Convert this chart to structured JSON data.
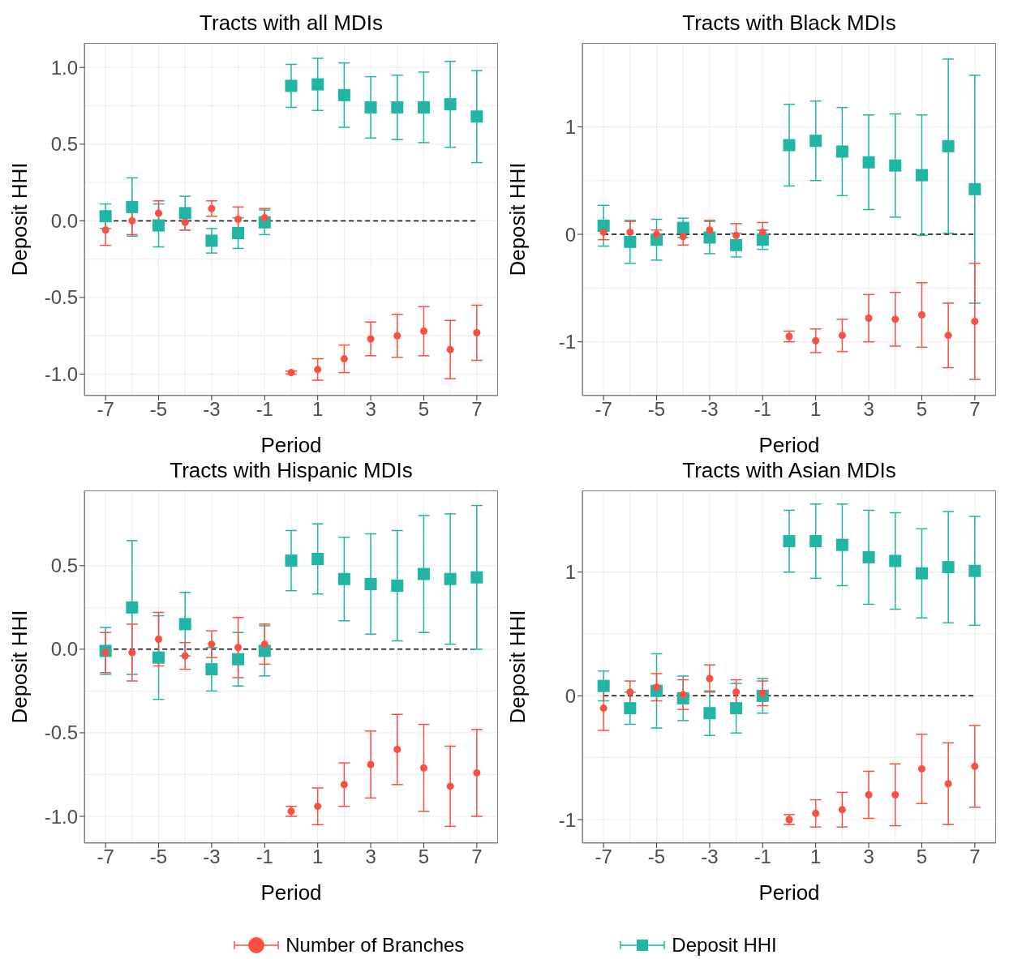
{
  "chart_data": [
    {
      "type": "scatter",
      "title": "Tracts with all MDIs",
      "xlabel": "Period",
      "ylabel": "Deposit HHI",
      "x": [
        -7,
        -6,
        -5,
        -4,
        -3,
        -2,
        -1,
        0,
        1,
        2,
        3,
        4,
        5,
        6,
        7
      ],
      "xlim": [
        -7.8,
        7.8
      ],
      "xticks": [
        -7,
        -5,
        -3,
        -1,
        1,
        3,
        5,
        7
      ],
      "ylim": [
        -1.14,
        1.16
      ],
      "yticks": [
        {
          "value": -1,
          "label": "-1.0"
        },
        {
          "value": -0.5,
          "label": "-0.5"
        },
        {
          "value": 0,
          "label": "0.0"
        },
        {
          "value": 0.5,
          "label": "0.5"
        },
        {
          "value": 1,
          "label": "1.0"
        }
      ],
      "grid": true,
      "legend": "bottom",
      "ref_lines": [
        {
          "axis": "y",
          "value": 0,
          "color": "#000000",
          "line_style": "dashed"
        }
      ],
      "series": [
        {
          "name": "Number of Branches",
          "color": "#fb4f43",
          "marker": "circle",
          "values": [
            -0.06,
            0,
            0.05,
            -0.01,
            0.08,
            0.01,
            0.02,
            -0.99,
            -0.97,
            -0.9,
            -0.77,
            -0.75,
            -0.72,
            -0.84,
            -0.73
          ],
          "errors": [
            0.1,
            0.09,
            0.08,
            0.05,
            0.05,
            0.08,
            0.06,
            0.01,
            0.07,
            0.09,
            0.11,
            0.14,
            0.16,
            0.19,
            0.18
          ]
        },
        {
          "name": "Deposit HHI",
          "color": "#20b5a5",
          "marker": "square",
          "values": [
            0.03,
            0.09,
            -0.03,
            0.05,
            -0.13,
            -0.08,
            -0.01,
            0.88,
            0.89,
            0.82,
            0.74,
            0.74,
            0.74,
            0.76,
            0.68
          ],
          "errors": [
            0.08,
            0.19,
            0.14,
            0.11,
            0.08,
            0.1,
            0.08,
            0.14,
            0.17,
            0.21,
            0.2,
            0.21,
            0.23,
            0.28,
            0.3
          ]
        }
      ]
    },
    {
      "type": "scatter",
      "title": "Tracts with Black MDIs",
      "xlabel": "Period",
      "ylabel": "Deposit HHI",
      "x": [
        -7,
        -6,
        -5,
        -4,
        -3,
        -2,
        -1,
        0,
        1,
        2,
        3,
        4,
        5,
        6,
        7
      ],
      "xlim": [
        -7.8,
        7.8
      ],
      "xticks": [
        -7,
        -5,
        -3,
        -1,
        1,
        3,
        5,
        7
      ],
      "ylim": [
        -1.5,
        1.78
      ],
      "yticks": [
        -1,
        0,
        1
      ],
      "grid": true,
      "ref_lines": [
        {
          "axis": "y",
          "value": 0,
          "color": "#000000",
          "line_style": "dashed"
        }
      ],
      "series": [
        {
          "color": "#fb4f43",
          "marker": "circle",
          "values": [
            0.02,
            0.02,
            0,
            -0.02,
            0.04,
            -0.01,
            0.02,
            -0.95,
            -0.99,
            -0.94,
            -0.78,
            -0.79,
            -0.75,
            -0.94,
            -0.81
          ],
          "errors": [
            0.07,
            0.1,
            0.04,
            0.08,
            0.09,
            0.11,
            0.09,
            0.05,
            0.11,
            0.15,
            0.22,
            0.25,
            0.3,
            0.3,
            0.54
          ]
        },
        {
          "color": "#20b5a5",
          "marker": "square",
          "values": [
            0.08,
            -0.07,
            -0.05,
            0.06,
            -0.03,
            -0.1,
            -0.05,
            0.83,
            0.87,
            0.77,
            0.67,
            0.64,
            0.55,
            0.82,
            0.42
          ],
          "errors": [
            0.19,
            0.2,
            0.19,
            0.09,
            0.15,
            0.11,
            0.09,
            0.38,
            0.37,
            0.41,
            0.44,
            0.48,
            0.56,
            0.81,
            1.06
          ]
        }
      ]
    },
    {
      "type": "scatter",
      "title": "Tracts with Hispanic MDIs",
      "xlabel": "Period",
      "ylabel": "Deposit HHI",
      "x": [
        -7,
        -6,
        -5,
        -4,
        -3,
        -2,
        -1,
        0,
        1,
        2,
        3,
        4,
        5,
        6,
        7
      ],
      "xlim": [
        -7.8,
        7.8
      ],
      "xticks": [
        -7,
        -5,
        -3,
        -1,
        1,
        3,
        5,
        7
      ],
      "ylim": [
        -1.16,
        0.95
      ],
      "yticks": [
        {
          "value": -1,
          "label": "-1.0"
        },
        {
          "value": -0.5,
          "label": "-0.5"
        },
        {
          "value": 0,
          "label": "0.0"
        },
        {
          "value": 0.5,
          "label": "0.5"
        }
      ],
      "grid": true,
      "ref_lines": [
        {
          "axis": "y",
          "value": 0,
          "color": "#000000",
          "line_style": "dashed"
        }
      ],
      "series": [
        {
          "color": "#fb4f43",
          "marker": "circle",
          "values": [
            -0.02,
            -0.02,
            0.06,
            -0.04,
            0.03,
            0.01,
            0.03,
            -0.97,
            -0.94,
            -0.81,
            -0.69,
            -0.6,
            -0.71,
            -0.82,
            -0.74
          ],
          "errors": [
            0.12,
            0.17,
            0.16,
            0.08,
            0.08,
            0.18,
            0.12,
            0.03,
            0.11,
            0.13,
            0.2,
            0.21,
            0.26,
            0.24,
            0.26
          ]
        },
        {
          "color": "#20b5a5",
          "marker": "square",
          "values": [
            -0.01,
            0.25,
            -0.05,
            0.15,
            -0.12,
            -0.06,
            -0.01,
            0.53,
            0.54,
            0.42,
            0.39,
            0.38,
            0.45,
            0.42,
            0.43
          ],
          "errors": [
            0.14,
            0.4,
            0.25,
            0.19,
            0.13,
            0.16,
            0.15,
            0.18,
            0.21,
            0.25,
            0.3,
            0.33,
            0.35,
            0.39,
            0.43
          ]
        }
      ]
    },
    {
      "type": "scatter",
      "title": "Tracts with Asian MDIs",
      "xlabel": "Period",
      "ylabel": "Deposit HHI",
      "x": [
        -7,
        -6,
        -5,
        -4,
        -3,
        -2,
        -1,
        0,
        1,
        2,
        3,
        4,
        5,
        6,
        7
      ],
      "xlim": [
        -7.8,
        7.8
      ],
      "xticks": [
        -7,
        -5,
        -3,
        -1,
        1,
        3,
        5,
        7
      ],
      "ylim": [
        -1.19,
        1.66
      ],
      "yticks": [
        -1,
        0,
        1
      ],
      "grid": true,
      "ref_lines": [
        {
          "axis": "y",
          "value": 0,
          "color": "#000000",
          "line_style": "dashed"
        }
      ],
      "series": [
        {
          "color": "#fb4f43",
          "marker": "circle",
          "values": [
            -0.1,
            0.03,
            0.07,
            0.01,
            0.14,
            0.03,
            0.02,
            -1,
            -0.95,
            -0.92,
            -0.8,
            -0.8,
            -0.59,
            -0.71,
            -0.57
          ],
          "errors": [
            0.18,
            0.09,
            0.11,
            0.12,
            0.11,
            0.1,
            0.1,
            0.04,
            0.11,
            0.14,
            0.19,
            0.25,
            0.28,
            0.33,
            0.33
          ]
        },
        {
          "color": "#20b5a5",
          "marker": "square",
          "values": [
            0.08,
            -0.1,
            0.04,
            -0.02,
            -0.14,
            -0.1,
            0,
            1.25,
            1.25,
            1.22,
            1.12,
            1.09,
            0.99,
            1.04,
            1.01
          ],
          "errors": [
            0.12,
            0.13,
            0.3,
            0.18,
            0.18,
            0.2,
            0.14,
            0.25,
            0.3,
            0.33,
            0.38,
            0.39,
            0.36,
            0.45,
            0.44
          ]
        }
      ]
    }
  ]
}
